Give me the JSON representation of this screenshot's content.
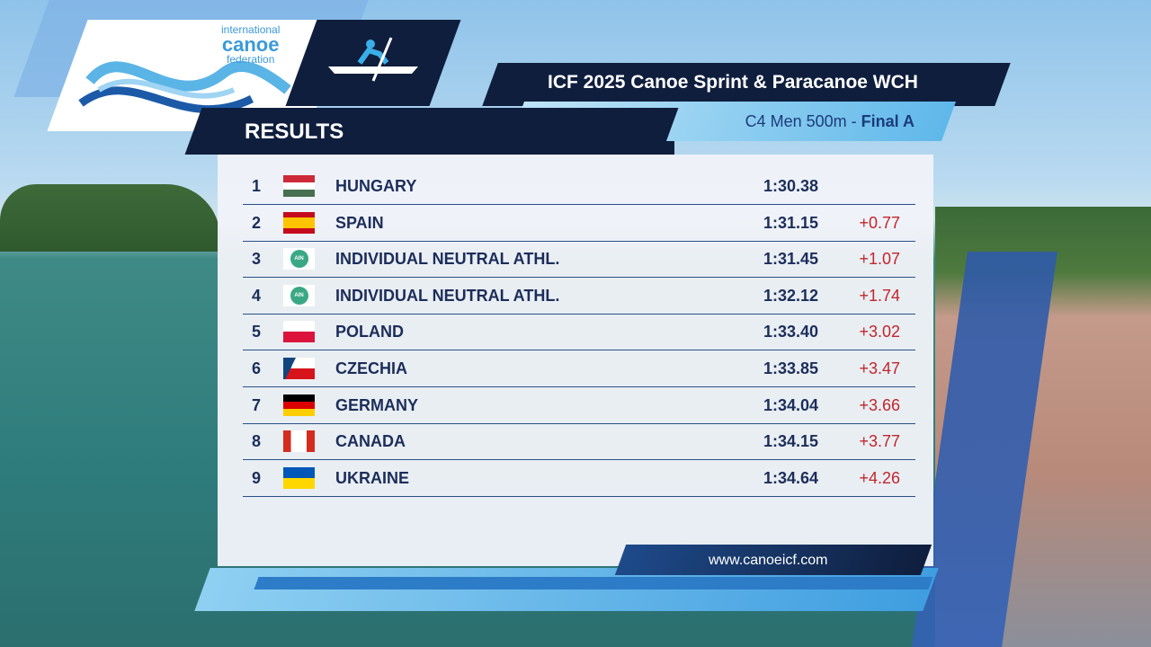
{
  "logo": {
    "line1": "international",
    "line2": "canoe",
    "line3": "federation"
  },
  "header": {
    "title": "ICF 2025 Canoe Sprint & Paracanoe WCH",
    "section": "RESULTS",
    "event": "C4 Men 500m",
    "separator": "-",
    "phase": "Final A"
  },
  "table": {
    "rows": [
      {
        "rank": 1,
        "country": "HUNGARY",
        "time": "1:30.38",
        "gap": null
      },
      {
        "rank": 2,
        "country": "SPAIN",
        "time": "1:31.15",
        "gap": "+0.77"
      },
      {
        "rank": 3,
        "flag_text": "AIN",
        "country": "INDIVIDUAL NEUTRAL ATHL.",
        "time": "1:31.45",
        "gap": "+1.07"
      },
      {
        "rank": 4,
        "flag_text": "AIN",
        "country": "INDIVIDUAL NEUTRAL ATHL.",
        "time": "1:32.12",
        "gap": "+1.74"
      },
      {
        "rank": 5,
        "country": "POLAND",
        "time": "1:33.40",
        "gap": "+3.02"
      },
      {
        "rank": 6,
        "country": "CZECHIA",
        "time": "1:33.85",
        "gap": "+3.47"
      },
      {
        "rank": 7,
        "country": "GERMANY",
        "time": "1:34.04",
        "gap": "+3.66"
      },
      {
        "rank": 8,
        "country": "CANADA",
        "time": "1:34.15",
        "gap": "+3.77"
      },
      {
        "rank": 9,
        "country": "UKRAINE",
        "time": "1:34.64",
        "gap": "+4.26"
      }
    ]
  },
  "footer": {
    "url": "www.canoeicf.com"
  }
}
